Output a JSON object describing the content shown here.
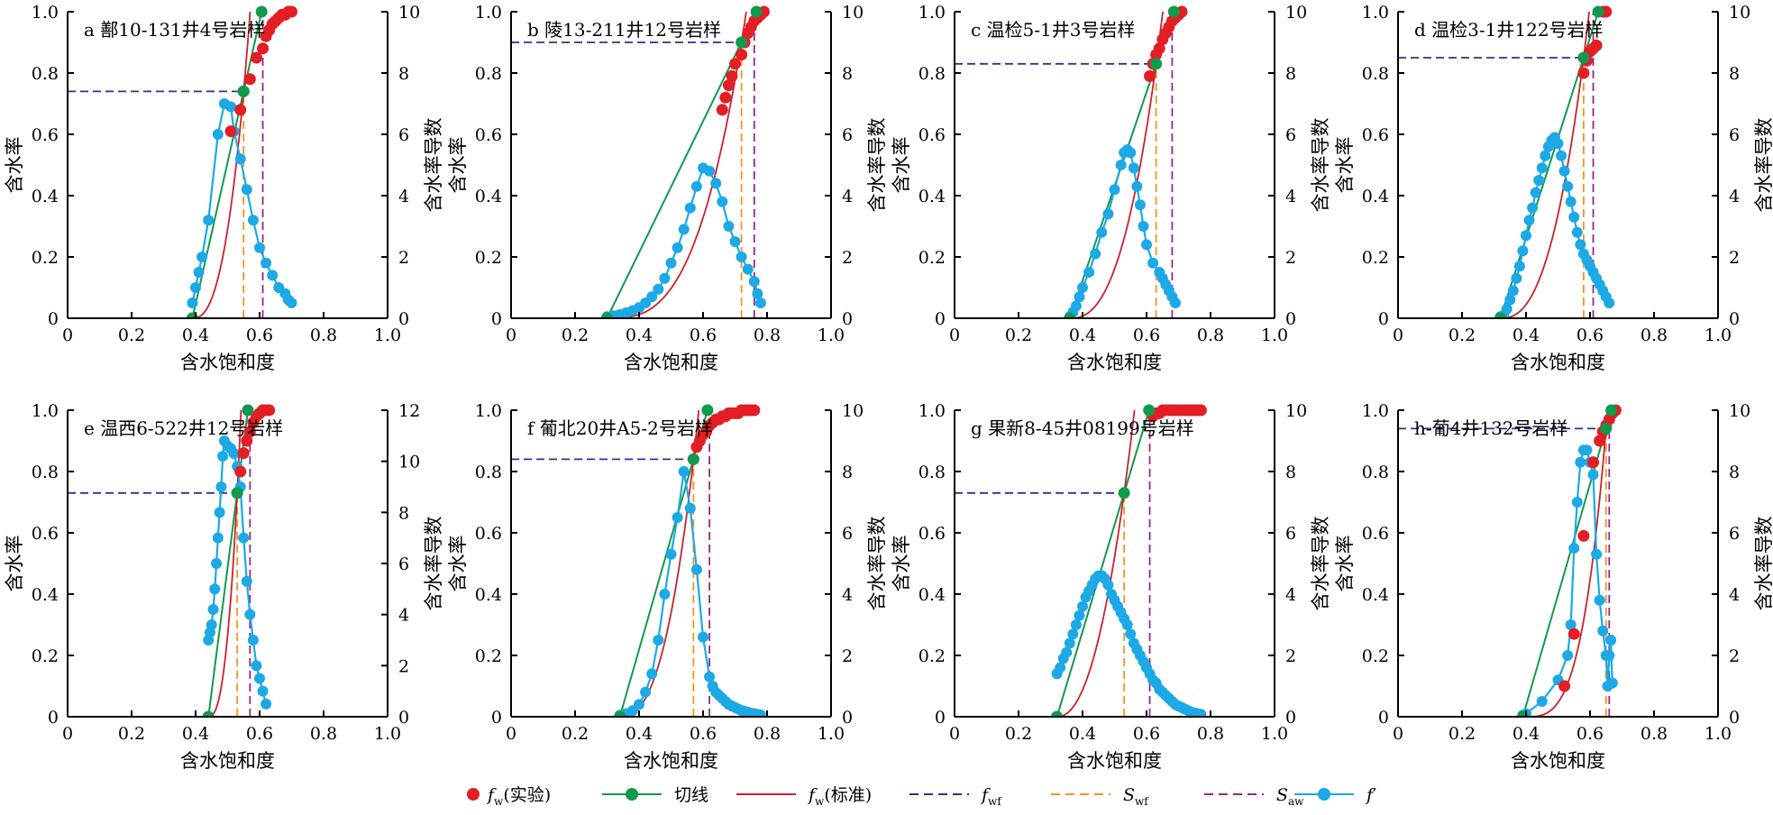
{
  "colors": {
    "fw_exp": "#e31e24",
    "tangent": "#0f9a4e",
    "fw_std": "#c8232c",
    "fwf": "#2e3192",
    "swf": "#f7931e",
    "saw": "#93278f",
    "dfw": "#1ca9e6",
    "axis": "#000000"
  },
  "legend": {
    "fw_exp": {
      "main": "f",
      "sub": "w",
      "rest": "(实验)"
    },
    "tangent": {
      "main": "切线",
      "sub": "",
      "rest": ""
    },
    "fw_std": {
      "main": "f",
      "sub": "w",
      "rest": "(标准)"
    },
    "fwf": {
      "main": "f",
      "sub": "wf",
      "rest": ""
    },
    "swf": {
      "main": "S",
      "sub": "wf",
      "rest": ""
    },
    "saw": {
      "main": "S",
      "sub": "aw",
      "rest": ""
    },
    "dfw": {
      "main": "f",
      "sub": "",
      "rest": "′"
    }
  },
  "chart_data": [
    {
      "type": "line",
      "title": "a 鄯10-131井4号岩样",
      "xlabel": "含水饱和度",
      "ylabel": "含水率",
      "y2label": "含水率导数",
      "xlim": [
        0,
        1.0
      ],
      "ylim": [
        0,
        1.0
      ],
      "y2lim": [
        0,
        10
      ],
      "xticks": [
        "0",
        "0.2",
        "0.4",
        "0.6",
        "0.8",
        "1.0"
      ],
      "yticks": [
        "0",
        "0.2",
        "0.4",
        "0.6",
        "0.8",
        "1.0"
      ],
      "y2ticks": [
        "0",
        "2",
        "4",
        "6",
        "8",
        "10"
      ],
      "swi": 0.39,
      "swf": 0.55,
      "fwf": 0.74,
      "saw": 0.61,
      "dfw_ymin": 0.5,
      "fw_exp": {
        "x": [
          0.51,
          0.54,
          0.55,
          0.57,
          0.59,
          0.61,
          0.62,
          0.63,
          0.64,
          0.65,
          0.66,
          0.67,
          0.68,
          0.69,
          0.7
        ],
        "y": [
          0.61,
          0.68,
          0.74,
          0.78,
          0.85,
          0.88,
          0.92,
          0.94,
          0.96,
          0.97,
          0.98,
          0.99,
          0.99,
          1.0,
          1.0
        ]
      },
      "fw_std": {
        "k": 2.5
      },
      "tangent_top": 1.0,
      "dfw": {
        "x": [
          0.39,
          0.4,
          0.41,
          0.42,
          0.44,
          0.47,
          0.49,
          0.51,
          0.52,
          0.54,
          0.56,
          0.58,
          0.6,
          0.62,
          0.64,
          0.66,
          0.68,
          0.69,
          0.7
        ],
        "y": [
          0.5,
          1.0,
          1.5,
          2.0,
          3.2,
          6.0,
          7.0,
          6.9,
          6.1,
          5.2,
          4.2,
          3.2,
          2.3,
          1.8,
          1.4,
          1.0,
          0.8,
          0.6,
          0.5
        ]
      }
    },
    {
      "type": "line",
      "title": "b 陵13-211井12号岩样",
      "xlabel": "含水饱和度",
      "ylabel": "含水率",
      "y2label": "含水率导数",
      "xlim": [
        0,
        1.0
      ],
      "ylim": [
        0,
        1.0
      ],
      "y2lim": [
        0,
        10
      ],
      "xticks": [
        "0",
        "0.2",
        "0.4",
        "0.6",
        "0.8",
        "1.0"
      ],
      "yticks": [
        "0",
        "0.2",
        "0.4",
        "0.6",
        "0.8",
        "1.0"
      ],
      "y2ticks": [
        "0",
        "2",
        "4",
        "6",
        "8",
        "10"
      ],
      "swi": 0.3,
      "swf": 0.72,
      "fwf": 0.9,
      "saw": 0.76,
      "dfw_ymin": 0.05,
      "fw_exp": {
        "x": [
          0.66,
          0.67,
          0.68,
          0.69,
          0.7,
          0.72,
          0.73,
          0.74,
          0.75,
          0.76,
          0.77,
          0.78,
          0.79
        ],
        "y": [
          0.68,
          0.72,
          0.76,
          0.79,
          0.83,
          0.86,
          0.9,
          0.93,
          0.95,
          0.97,
          0.98,
          0.99,
          1.0
        ]
      },
      "fw_std": {
        "k": 3.0
      },
      "tangent_top": 1.0,
      "dfw": {
        "x": [
          0.3,
          0.32,
          0.34,
          0.36,
          0.38,
          0.4,
          0.42,
          0.44,
          0.46,
          0.48,
          0.5,
          0.52,
          0.54,
          0.56,
          0.58,
          0.6,
          0.62,
          0.64,
          0.66,
          0.68,
          0.7,
          0.72,
          0.74,
          0.76,
          0.77,
          0.78
        ],
        "y": [
          0.05,
          0.08,
          0.12,
          0.18,
          0.25,
          0.35,
          0.5,
          0.7,
          0.95,
          1.3,
          1.8,
          2.3,
          2.9,
          3.6,
          4.3,
          4.9,
          4.8,
          4.4,
          3.8,
          3.0,
          2.5,
          2.0,
          1.6,
          1.2,
          0.8,
          0.5
        ]
      }
    },
    {
      "type": "line",
      "title": "c 温检5-1井3号岩样",
      "xlabel": "含水饱和度",
      "ylabel": "含水率",
      "y2label": "含水率导数",
      "xlim": [
        0,
        1.0
      ],
      "ylim": [
        0,
        1.0
      ],
      "y2lim": [
        0,
        10
      ],
      "xticks": [
        "0",
        "0.2",
        "0.4",
        "0.6",
        "0.8",
        "1.0"
      ],
      "yticks": [
        "0",
        "0.2",
        "0.4",
        "0.6",
        "0.8",
        "1.0"
      ],
      "y2ticks": [
        "0",
        "2",
        "4",
        "6",
        "8",
        "10"
      ],
      "swi": 0.36,
      "swf": 0.63,
      "fwf": 0.83,
      "saw": 0.68,
      "dfw_ymin": 0.05,
      "fw_exp": {
        "x": [
          0.61,
          0.62,
          0.63,
          0.64,
          0.65,
          0.66,
          0.67,
          0.68,
          0.69,
          0.7,
          0.71
        ],
        "y": [
          0.79,
          0.83,
          0.86,
          0.88,
          0.91,
          0.93,
          0.95,
          0.97,
          0.98,
          0.99,
          1.0
        ]
      },
      "fw_std": {
        "k": 2.5
      },
      "tangent_top": 1.0,
      "dfw": {
        "x": [
          0.36,
          0.37,
          0.38,
          0.39,
          0.4,
          0.42,
          0.44,
          0.46,
          0.48,
          0.5,
          0.52,
          0.53,
          0.54,
          0.55,
          0.56,
          0.57,
          0.58,
          0.59,
          0.6,
          0.62,
          0.64,
          0.65,
          0.66,
          0.67,
          0.68,
          0.69
        ],
        "y": [
          0.05,
          0.2,
          0.4,
          0.7,
          1.0,
          1.5,
          2.1,
          2.8,
          3.4,
          4.2,
          5.0,
          5.4,
          5.5,
          5.4,
          4.9,
          4.3,
          3.7,
          3.0,
          2.4,
          1.8,
          1.5,
          1.3,
          1.1,
          0.9,
          0.7,
          0.5
        ]
      }
    },
    {
      "type": "line",
      "title": "d 温检3-1井122号岩样",
      "xlabel": "含水饱和度",
      "ylabel": "含水率",
      "y2label": "含水率导数",
      "xlim": [
        0,
        1.0
      ],
      "ylim": [
        0,
        1.0
      ],
      "y2lim": [
        0,
        10
      ],
      "xticks": [
        "0",
        "0.2",
        "0.4",
        "0.6",
        "0.8",
        "1.0"
      ],
      "yticks": [
        "0",
        "0.2",
        "0.4",
        "0.6",
        "0.8",
        "1.0"
      ],
      "y2ticks": [
        "0",
        "2",
        "4",
        "6",
        "8",
        "10"
      ],
      "swi": 0.32,
      "swf": 0.58,
      "fwf": 0.85,
      "saw": 0.61,
      "dfw_ymin": 0.05,
      "fw_exp": {
        "x": [
          0.58,
          0.59,
          0.6,
          0.61,
          0.62,
          0.64,
          0.65
        ],
        "y": [
          0.8,
          0.84,
          0.87,
          0.88,
          0.89,
          1.0,
          1.0
        ]
      },
      "fw_std": {
        "k": 2.5
      },
      "tangent_top": 1.0,
      "dfw": {
        "x": [
          0.32,
          0.33,
          0.34,
          0.35,
          0.36,
          0.37,
          0.38,
          0.39,
          0.4,
          0.41,
          0.42,
          0.43,
          0.44,
          0.45,
          0.46,
          0.47,
          0.48,
          0.49,
          0.5,
          0.51,
          0.52,
          0.53,
          0.54,
          0.55,
          0.56,
          0.57,
          0.58,
          0.59,
          0.6,
          0.61,
          0.62,
          0.63,
          0.64,
          0.65,
          0.66
        ],
        "y": [
          0.05,
          0.1,
          0.3,
          0.6,
          0.9,
          1.3,
          1.7,
          2.2,
          2.7,
          3.2,
          3.6,
          4.1,
          4.5,
          4.9,
          5.3,
          5.6,
          5.8,
          5.9,
          5.7,
          5.3,
          4.8,
          4.3,
          3.8,
          3.3,
          2.8,
          2.4,
          2.1,
          1.9,
          1.7,
          1.5,
          1.3,
          1.1,
          0.9,
          0.7,
          0.5
        ]
      }
    },
    {
      "type": "line",
      "title": "e 温西6-522井12号岩样",
      "xlabel": "含水饱和度",
      "ylabel": "含水率",
      "y2label": "含水率导数",
      "xlim": [
        0,
        1.0
      ],
      "ylim": [
        0,
        1.0
      ],
      "y2lim": [
        0,
        12
      ],
      "xticks": [
        "0",
        "0.2",
        "0.4",
        "0.6",
        "0.8",
        "1.0"
      ],
      "yticks": [
        "0",
        "0.2",
        "0.4",
        "0.6",
        "0.8",
        "1.0"
      ],
      "y2ticks": [
        "0",
        "2",
        "4",
        "6",
        "8",
        "10",
        "12"
      ],
      "swi": 0.44,
      "swf": 0.53,
      "fwf": 0.73,
      "saw": 0.57,
      "dfw_ymin": 3.0,
      "fw_exp": {
        "x": [
          0.53,
          0.54,
          0.55,
          0.56,
          0.57,
          0.58,
          0.59,
          0.6,
          0.61,
          0.62,
          0.63
        ],
        "y": [
          0.73,
          0.8,
          0.86,
          0.9,
          0.93,
          0.96,
          0.98,
          0.99,
          1.0,
          1.0,
          1.0
        ]
      },
      "fw_std": {
        "k": 2.5
      },
      "tangent_top": 1.0,
      "dfw": {
        "x": [
          0.44,
          0.445,
          0.45,
          0.455,
          0.46,
          0.465,
          0.47,
          0.475,
          0.48,
          0.485,
          0.49,
          0.5,
          0.51,
          0.52,
          0.53,
          0.54,
          0.55,
          0.56,
          0.57,
          0.58,
          0.59,
          0.6,
          0.61,
          0.62
        ],
        "y": [
          3.0,
          3.3,
          3.6,
          4.2,
          5.0,
          6.0,
          7.0,
          8.0,
          9.0,
          10.2,
          10.8,
          10.6,
          10.5,
          10.3,
          9.8,
          9.0,
          7.0,
          5.3,
          4.0,
          3.0,
          2.0,
          1.5,
          1.0,
          0.5
        ]
      }
    },
    {
      "type": "line",
      "title": "f 葡北20井A5-2号岩样",
      "xlabel": "含水饱和度",
      "ylabel": "含水率",
      "y2label": "含水率导数",
      "xlim": [
        0,
        1.0
      ],
      "ylim": [
        0,
        1.0
      ],
      "y2lim": [
        0,
        10
      ],
      "xticks": [
        "0",
        "0.2",
        "0.4",
        "0.6",
        "0.8",
        "1.0"
      ],
      "yticks": [
        "0",
        "0.2",
        "0.4",
        "0.6",
        "0.8",
        "1.0"
      ],
      "y2ticks": [
        "0",
        "2",
        "4",
        "6",
        "8",
        "10"
      ],
      "swi": 0.34,
      "swf": 0.57,
      "fwf": 0.84,
      "saw": 0.62,
      "dfw_ymin": 0.05,
      "fw_exp": {
        "x": [
          0.57,
          0.58,
          0.59,
          0.6,
          0.61,
          0.62,
          0.63,
          0.64,
          0.65,
          0.66,
          0.67,
          0.68,
          0.69,
          0.7,
          0.71,
          0.72,
          0.73,
          0.74,
          0.75,
          0.76
        ],
        "y": [
          0.84,
          0.88,
          0.9,
          0.92,
          0.93,
          0.95,
          0.96,
          0.97,
          0.97,
          0.98,
          0.98,
          0.99,
          0.99,
          0.99,
          0.99,
          1.0,
          1.0,
          1.0,
          1.0,
          1.0
        ]
      },
      "fw_std": {
        "k": 2.5
      },
      "tangent_top": 1.0,
      "dfw": {
        "x": [
          0.34,
          0.36,
          0.38,
          0.4,
          0.42,
          0.44,
          0.46,
          0.48,
          0.5,
          0.52,
          0.54,
          0.56,
          0.58,
          0.6,
          0.62,
          0.63,
          0.64,
          0.65,
          0.66,
          0.67,
          0.68,
          0.69,
          0.7,
          0.71,
          0.72,
          0.73,
          0.74,
          0.75,
          0.76,
          0.77,
          0.78
        ],
        "y": [
          0.05,
          0.1,
          0.2,
          0.4,
          0.8,
          1.4,
          2.5,
          4.0,
          5.3,
          6.5,
          8.0,
          6.8,
          4.8,
          2.6,
          1.3,
          1.0,
          0.8,
          0.7,
          0.6,
          0.5,
          0.4,
          0.35,
          0.3,
          0.25,
          0.2,
          0.18,
          0.15,
          0.12,
          0.1,
          0.08,
          0.06
        ]
      }
    },
    {
      "type": "line",
      "title": "g 果新8-45井08199号岩样",
      "xlabel": "含水饱和度",
      "ylabel": "含水率",
      "y2label": "含水率导数",
      "xlim": [
        0,
        1.0
      ],
      "ylim": [
        0,
        1.0
      ],
      "y2lim": [
        0,
        10
      ],
      "xticks": [
        "0",
        "0.2",
        "0.4",
        "0.6",
        "0.8",
        "1.0"
      ],
      "yticks": [
        "0",
        "0.2",
        "0.4",
        "0.6",
        "0.8",
        "1.0"
      ],
      "y2ticks": [
        "0",
        "2",
        "4",
        "6",
        "8",
        "10"
      ],
      "swi": 0.32,
      "swf": 0.53,
      "fwf": 0.73,
      "saw": 0.61,
      "dfw_ymin": 0.05,
      "fw_exp": {
        "x": [
          0.62,
          0.63,
          0.64,
          0.65,
          0.66,
          0.67,
          0.68,
          0.69,
          0.7,
          0.71,
          0.72,
          0.73,
          0.74,
          0.75,
          0.76,
          0.77
        ],
        "y": [
          0.98,
          0.99,
          0.99,
          1.0,
          1.0,
          1.0,
          1.0,
          1.0,
          1.0,
          1.0,
          1.0,
          1.0,
          1.0,
          1.0,
          1.0,
          1.0
        ]
      },
      "fw_std": {
        "k": 2.2
      },
      "tangent_top": 1.0,
      "dfw": {
        "x": [
          0.32,
          0.33,
          0.34,
          0.35,
          0.36,
          0.37,
          0.38,
          0.39,
          0.4,
          0.41,
          0.42,
          0.43,
          0.44,
          0.45,
          0.46,
          0.47,
          0.48,
          0.49,
          0.5,
          0.51,
          0.52,
          0.53,
          0.54,
          0.55,
          0.56,
          0.57,
          0.58,
          0.59,
          0.6,
          0.61,
          0.62,
          0.63,
          0.64,
          0.65,
          0.66,
          0.67,
          0.68,
          0.69,
          0.7,
          0.71,
          0.72,
          0.73,
          0.74,
          0.75,
          0.76,
          0.77
        ],
        "y": [
          1.4,
          1.6,
          1.9,
          2.1,
          2.4,
          2.7,
          3.0,
          3.3,
          3.6,
          3.9,
          4.1,
          4.3,
          4.5,
          4.6,
          4.6,
          4.5,
          4.3,
          4.0,
          3.8,
          3.6,
          3.4,
          3.2,
          3.0,
          2.7,
          2.4,
          2.2,
          2.0,
          1.8,
          1.6,
          1.4,
          1.2,
          1.1,
          0.9,
          0.8,
          0.7,
          0.6,
          0.5,
          0.4,
          0.35,
          0.3,
          0.25,
          0.2,
          0.15,
          0.12,
          0.1,
          0.08
        ]
      }
    },
    {
      "type": "line",
      "title": "h-葡4井132号岩样",
      "xlabel": "含水饱和度",
      "ylabel": "含水率",
      "y2label": "含水率导数",
      "xlim": [
        0,
        1.0
      ],
      "ylim": [
        0,
        1.0
      ],
      "y2lim": [
        0,
        10
      ],
      "xticks": [
        "0",
        "0.2",
        "0.4",
        "0.6",
        "0.8",
        "1.0"
      ],
      "yticks": [
        "0",
        "0.2",
        "0.4",
        "0.6",
        "0.8",
        "1.0"
      ],
      "y2ticks": [
        "0",
        "2",
        "4",
        "6",
        "8",
        "10"
      ],
      "swi": 0.39,
      "swf": 0.65,
      "fwf": 0.94,
      "saw": 0.66,
      "dfw_ymin": 0.05,
      "fw_exp": {
        "x": [
          0.52,
          0.55,
          0.58,
          0.61,
          0.63,
          0.64,
          0.65,
          0.66,
          0.67,
          0.68
        ],
        "y": [
          0.1,
          0.27,
          0.59,
          0.83,
          0.9,
          0.93,
          0.95,
          0.97,
          0.99,
          1.0
        ]
      },
      "fw_std": {
        "k": 3.5
      },
      "tangent_top": 1.0,
      "dfw": {
        "x": [
          0.39,
          0.4,
          0.45,
          0.5,
          0.53,
          0.54,
          0.55,
          0.56,
          0.57,
          0.58,
          0.59,
          0.6,
          0.61,
          0.62,
          0.63,
          0.64,
          0.65,
          0.655,
          0.66,
          0.665,
          0.67
        ],
        "y": [
          0.05,
          0.1,
          0.5,
          1.2,
          2.0,
          3.0,
          5.5,
          7.0,
          8.3,
          8.7,
          8.7,
          8.3,
          7.9,
          5.3,
          3.8,
          2.8,
          2.0,
          1.0,
          2.0,
          2.5,
          1.1
        ]
      }
    }
  ]
}
